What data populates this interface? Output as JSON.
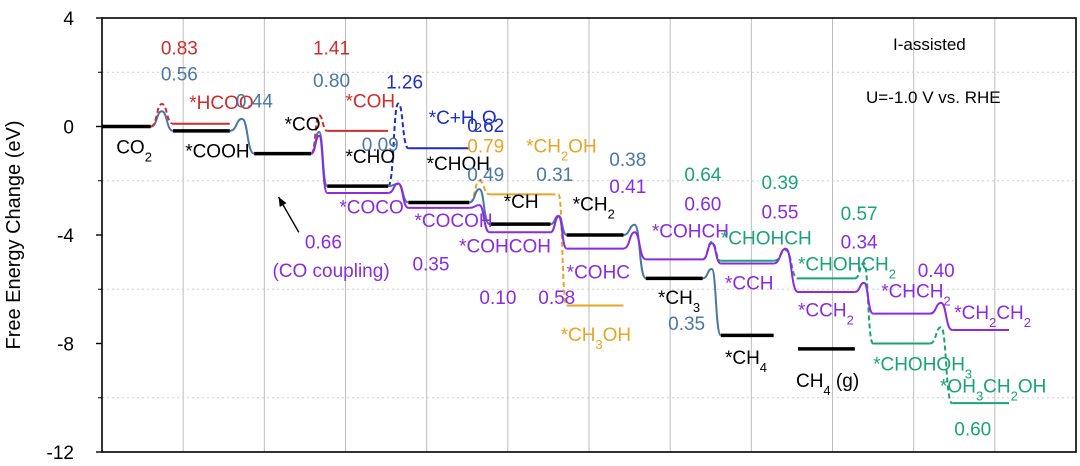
{
  "chart_data": {
    "type": "line",
    "ylabel": "Free Energy Change (eV)",
    "yticks": [
      "4",
      "0",
      "-4",
      "-8",
      "-12"
    ],
    "ylim": [
      -12,
      4
    ],
    "xlim": [
      0,
      12
    ],
    "vgrid": true,
    "notes": [
      {
        "text": "I-assisted",
        "color": "#000000",
        "position": "top-right"
      },
      {
        "text": "U=-1.0 V vs. RHE",
        "color": "#000000",
        "position": "top-right"
      }
    ],
    "colors": {
      "black": "#000000",
      "red": "#d12b2b",
      "steel": "#4a77a8",
      "blue": "#1c2fc4",
      "orange": "#e8a524",
      "purple": "#8a2be2",
      "green": "#1aa37a"
    },
    "levels": [
      {
        "label": "CO2",
        "html": "CO<tspan baseline-shift='sub' font-size='13'>2</tspan>",
        "color": "#000000",
        "x0": 0.0,
        "x1": 1.2,
        "y": 0.0,
        "lx": 0.35,
        "ly": -1.0
      },
      {
        "label": "*COOH",
        "html": "*COOH",
        "color": "#000000",
        "x0": 1.75,
        "x1": 3.15,
        "y": -0.16,
        "lx": 2.05,
        "ly": -1.15
      },
      {
        "label": "*HCOO",
        "html": "*HCOO",
        "color": "#d12b2b",
        "x0": 1.75,
        "x1": 3.15,
        "y": 0.1,
        "lx": 2.15,
        "ly": 0.65
      },
      {
        "label": "*CO",
        "html": "*CO",
        "color": "#000000",
        "x0": 3.75,
        "x1": 5.15,
        "y": -1.0,
        "lx": 4.5,
        "ly": -0.15
      },
      {
        "label": "*COH",
        "html": "*COH",
        "color": "#d12b2b",
        "x0": 5.55,
        "x1": 7.05,
        "y": -0.16,
        "lx": 6.0,
        "ly": 0.7
      },
      {
        "label": "*CHO",
        "html": "*CHO",
        "color": "#000000",
        "x0": 5.55,
        "x1": 7.05,
        "y": -2.2,
        "lx": 6.0,
        "ly": -1.35
      },
      {
        "label": "*COCO",
        "html": "*COCO",
        "color": "#8a2be2",
        "x0": 5.55,
        "x1": 7.05,
        "y": -2.45,
        "lx": 5.85,
        "ly": -3.2
      },
      {
        "label": "*C+H2O",
        "html": "*C+H<tspan baseline-shift='sub' font-size='13'>2</tspan>O",
        "color": "#1c2fc4",
        "x0": 7.55,
        "x1": 9.05,
        "y": -0.8,
        "lx": 8.05,
        "ly": 0.1
      },
      {
        "label": "*CHOH",
        "html": "*CHOH",
        "color": "#000000",
        "x0": 7.55,
        "x1": 9.05,
        "y": -2.8,
        "lx": 8.0,
        "ly": -1.6
      },
      {
        "label": "*COCOH",
        "html": "*COCOH",
        "color": "#8a2be2",
        "x0": 7.55,
        "x1": 9.05,
        "y": -3.0,
        "lx": 7.7,
        "ly": -3.7
      },
      {
        "label": "*CH2OH",
        "html": "*CH<tspan baseline-shift='sub' font-size='13'>2</tspan>OH",
        "color": "#e8a524",
        "x0": 9.55,
        "x1": 11.05,
        "y": -2.5,
        "lx": 10.45,
        "ly": -0.95
      },
      {
        "label": "*CH",
        "html": "*CH",
        "color": "#000000",
        "x0": 9.55,
        "x1": 11.05,
        "y": -3.6,
        "lx": 9.9,
        "ly": -3.0
      },
      {
        "label": "*COHCOH",
        "html": "*COHCOH",
        "color": "#8a2be2",
        "x0": 9.55,
        "x1": 11.05,
        "y": -3.9,
        "lx": 8.8,
        "ly": -4.65
      },
      {
        "label": "*CH3OH",
        "html": "*CH<tspan baseline-shift='sub' font-size='13'>3</tspan>OH",
        "color": "#e8a524",
        "x0": 11.45,
        "x1": 12.85,
        "y": -6.6,
        "lx": 11.3,
        "ly": -7.9
      },
      {
        "label": "*CH2",
        "html": "*CH<tspan baseline-shift='sub' font-size='13'>2</tspan>",
        "color": "#000000",
        "x0": 11.45,
        "x1": 12.85,
        "y": -4.0,
        "lx": 11.6,
        "ly": -3.1
      },
      {
        "label": "*COHC",
        "html": "*COHC",
        "color": "#8a2be2",
        "x0": 11.45,
        "x1": 12.85,
        "y": -4.5,
        "lx": 11.45,
        "ly": -5.6
      },
      {
        "label": "*COHCH",
        "html": "*COHCH",
        "color": "#8a2be2",
        "x0": 13.4,
        "x1": 14.8,
        "y": -4.9,
        "lx": 13.55,
        "ly": -4.1
      },
      {
        "label": "*CH3",
        "html": "*CH<tspan baseline-shift='sub' font-size='13'>3</tspan>",
        "color": "#000000",
        "x0": 13.4,
        "x1": 14.8,
        "y": -5.6,
        "lx": 13.7,
        "ly": -6.55
      },
      {
        "label": "*CHOHCH",
        "html": "*CHOHCH",
        "color": "#1aa37a",
        "x0": 15.25,
        "x1": 16.55,
        "y": -4.95,
        "lx": 15.25,
        "ly": -4.35
      },
      {
        "label": "*CCH",
        "html": "*CCH",
        "color": "#8a2be2",
        "x0": 15.25,
        "x1": 16.55,
        "y": -5.05,
        "lx": 15.35,
        "ly": -6.0
      },
      {
        "label": "*CH4",
        "html": "*CH<tspan baseline-shift='sub' font-size='13'>4</tspan>",
        "color": "#000000",
        "x0": 15.25,
        "x1": 16.55,
        "y": -7.7,
        "lx": 15.35,
        "ly": -8.75
      },
      {
        "label": "CH4 (g)",
        "html": "CH<tspan baseline-shift='sub' font-size='13'>4</tspan> (g)",
        "color": "#000000",
        "x0": 17.15,
        "x1": 18.55,
        "y": -8.2,
        "lx": 17.1,
        "ly": -9.6
      },
      {
        "label": "*CHOHCH2",
        "html": "*CHOHCH<tspan baseline-shift='sub' font-size='13'>2</tspan>",
        "color": "#1aa37a",
        "x0": 17.15,
        "x1": 18.55,
        "y": -5.6,
        "lx": 17.15,
        "ly": -5.3
      },
      {
        "label": "*CCH2",
        "html": "*CCH<tspan baseline-shift='sub' font-size='13'>2</tspan>",
        "color": "#8a2be2",
        "x0": 17.15,
        "x1": 18.55,
        "y": -6.1,
        "lx": 17.15,
        "ly": -7.0
      },
      {
        "label": "*CHCH2",
        "html": "*CHCH<tspan baseline-shift='sub' font-size='13'>2</tspan>",
        "color": "#8a2be2",
        "x0": 19.0,
        "x1": 20.4,
        "y": -6.9,
        "lx": 19.2,
        "ly": -6.3
      },
      {
        "label": "*CHOHOH3",
        "html": "*CHOHOH<tspan baseline-shift='sub' font-size='13'>3</tspan>",
        "color": "#1aa37a",
        "x0": 19.0,
        "x1": 20.4,
        "y": -8.0,
        "lx": 19.0,
        "ly": -9.0
      },
      {
        "label": "*CH2CH2",
        "html": "*CH<tspan baseline-shift='sub' font-size='13'>2</tspan>CH<tspan baseline-shift='sub' font-size='13'>2</tspan>",
        "color": "#8a2be2",
        "x0": 20.95,
        "x1": 22.35,
        "y": -7.5,
        "lx": 21.0,
        "ly": -7.1
      },
      {
        "label": "*OH3CH2OH",
        "html": "*OH<tspan baseline-shift='sub' font-size='13'>3</tspan>CH<tspan baseline-shift='sub' font-size='13'>2</tspan>OH",
        "color": "#1aa37a",
        "x0": 20.95,
        "x1": 22.35,
        "y": -10.2,
        "lx": 20.65,
        "ly": -9.8
      }
    ],
    "barriers": [
      {
        "value": "0.83",
        "color": "#d12b2b",
        "lx": 1.45,
        "ly": 2.65
      },
      {
        "value": "0.56",
        "color": "#4a77a8",
        "lx": 1.45,
        "ly": 1.7
      },
      {
        "value": "0.44",
        "color": "#4a77a8",
        "lx": 3.3,
        "ly": 0.7
      },
      {
        "value": "1.41",
        "color": "#d12b2b",
        "lx": 5.2,
        "ly": 2.65
      },
      {
        "value": "0.80",
        "color": "#4a77a8",
        "lx": 5.2,
        "ly": 1.45
      },
      {
        "value": "1.26",
        "color": "#1c2fc4",
        "lx": 7.0,
        "ly": 1.4
      },
      {
        "value": "0.09",
        "color": "#4a77a8",
        "lx": 6.4,
        "ly": -0.9
      },
      {
        "value": "0.62",
        "color": "#1c2fc4",
        "lx": 9.0,
        "ly": -0.2
      },
      {
        "value": "0.79",
        "color": "#e8a524",
        "lx": 9.0,
        "ly": -0.95
      },
      {
        "value": "0.49",
        "color": "#4a77a8",
        "lx": 9.0,
        "ly": -2.0
      },
      {
        "value": "0.31",
        "color": "#4a77a8",
        "lx": 10.7,
        "ly": -2.0
      },
      {
        "value": "0.38",
        "color": "#4a77a8",
        "lx": 12.5,
        "ly": -1.45
      },
      {
        "value": "0.41",
        "color": "#8a2be2",
        "lx": 12.5,
        "ly": -2.45
      },
      {
        "value": "0.64",
        "color": "#1aa37a",
        "lx": 14.35,
        "ly": -2.0
      },
      {
        "value": "0.60",
        "color": "#8a2be2",
        "lx": 14.35,
        "ly": -3.1
      },
      {
        "value": "0.39",
        "color": "#1aa37a",
        "lx": 16.25,
        "ly": -2.3
      },
      {
        "value": "0.55",
        "color": "#8a2be2",
        "lx": 16.25,
        "ly": -3.4
      },
      {
        "value": "0.57",
        "color": "#1aa37a",
        "lx": 18.2,
        "ly": -3.45
      },
      {
        "value": "0.34",
        "color": "#8a2be2",
        "lx": 18.2,
        "ly": -4.5
      },
      {
        "value": "0.40",
        "color": "#8a2be2",
        "lx": 20.1,
        "ly": -5.55
      },
      {
        "value": "0.66",
        "color": "#8a2be2",
        "lx": 5.0,
        "ly": -4.5
      },
      {
        "value": "(CO coupling)",
        "color": "#8a2be2",
        "lx": 4.2,
        "ly": -5.55
      },
      {
        "value": "0.35",
        "color": "#8a2be2",
        "lx": 7.65,
        "ly": -5.3
      },
      {
        "value": "0.10",
        "color": "#8a2be2",
        "lx": 9.3,
        "ly": -6.55
      },
      {
        "value": "0.58",
        "color": "#8a2be2",
        "lx": 10.75,
        "ly": -6.55
      },
      {
        "value": "0.35",
        "color": "#4a77a8",
        "lx": 13.95,
        "ly": -7.5
      },
      {
        "value": "0.60",
        "color": "#1aa37a",
        "lx": 21.0,
        "ly": -11.4
      }
    ],
    "transitions": [
      {
        "from": [
          1.2,
          0.0
        ],
        "to": [
          1.75,
          -0.16
        ],
        "peak": 0.56,
        "color": "#4a77a8",
        "dash": false
      },
      {
        "from": [
          1.2,
          0.0
        ],
        "to": [
          1.75,
          0.1
        ],
        "peak": 0.83,
        "color": "#d12b2b",
        "dash": true
      },
      {
        "from": [
          3.15,
          -0.16
        ],
        "to": [
          3.75,
          -1.0
        ],
        "peak": 0.28,
        "color": "#4a77a8",
        "dash": false
      },
      {
        "from": [
          5.15,
          -1.0
        ],
        "to": [
          5.55,
          -0.16
        ],
        "peak": 0.41,
        "color": "#d12b2b",
        "dash": true
      },
      {
        "from": [
          5.15,
          -1.0
        ],
        "to": [
          5.55,
          -2.2
        ],
        "peak": -0.2,
        "color": "#4a77a8",
        "dash": false
      },
      {
        "from": [
          5.15,
          -1.0
        ],
        "to": [
          5.55,
          -2.45
        ],
        "peak": -0.34,
        "color": "#8a2be2",
        "dash": false
      },
      {
        "from": [
          7.05,
          -2.2
        ],
        "to": [
          7.55,
          -0.8
        ],
        "peak": 0.85,
        "color": "#1c2fc4",
        "dash": true
      },
      {
        "from": [
          7.05,
          -2.2
        ],
        "to": [
          7.55,
          -2.8
        ],
        "peak": -2.11,
        "color": "#4a77a8",
        "dash": false
      },
      {
        "from": [
          7.05,
          -2.45
        ],
        "to": [
          7.55,
          -3.0
        ],
        "peak": -2.1,
        "color": "#8a2be2",
        "dash": false
      },
      {
        "from": [
          9.05,
          -2.8
        ],
        "to": [
          9.55,
          -2.5
        ],
        "peak": -2.01,
        "color": "#e8a524",
        "dash": true
      },
      {
        "from": [
          9.05,
          -2.8
        ],
        "to": [
          9.55,
          -3.6
        ],
        "peak": -2.31,
        "color": "#4a77a8",
        "dash": false
      },
      {
        "from": [
          9.05,
          -3.0
        ],
        "to": [
          9.55,
          -3.9
        ],
        "peak": -2.9,
        "color": "#8a2be2",
        "dash": false
      },
      {
        "from": [
          11.05,
          -2.5
        ],
        "to": [
          11.45,
          -6.6
        ],
        "peak": -2.5,
        "color": "#e8a524",
        "dash": true
      },
      {
        "from": [
          11.05,
          -3.6
        ],
        "to": [
          11.45,
          -4.0
        ],
        "peak": -3.29,
        "color": "#4a77a8",
        "dash": false
      },
      {
        "from": [
          11.05,
          -3.9
        ],
        "to": [
          11.45,
          -4.5
        ],
        "peak": -3.32,
        "color": "#8a2be2",
        "dash": false
      },
      {
        "from": [
          12.85,
          -4.0
        ],
        "to": [
          13.4,
          -5.6
        ],
        "peak": -3.62,
        "color": "#4a77a8",
        "dash": false
      },
      {
        "from": [
          12.85,
          -4.5
        ],
        "to": [
          13.4,
          -4.9
        ],
        "peak": -3.9,
        "color": "#8a2be2",
        "dash": false
      },
      {
        "from": [
          14.8,
          -5.6
        ],
        "to": [
          15.25,
          -7.7
        ],
        "peak": -5.25,
        "color": "#4a77a8",
        "dash": false
      },
      {
        "from": [
          14.8,
          -4.9
        ],
        "to": [
          15.25,
          -4.95
        ],
        "peak": -4.26,
        "color": "#1aa37a",
        "dash": true
      },
      {
        "from": [
          14.8,
          -4.9
        ],
        "to": [
          15.25,
          -5.05
        ],
        "peak": -4.3,
        "color": "#8a2be2",
        "dash": false
      },
      {
        "from": [
          16.55,
          -4.95
        ],
        "to": [
          17.15,
          -5.6
        ],
        "peak": -4.56,
        "color": "#1aa37a",
        "dash": true
      },
      {
        "from": [
          16.55,
          -5.05
        ],
        "to": [
          17.15,
          -6.1
        ],
        "peak": -4.5,
        "color": "#8a2be2",
        "dash": false
      },
      {
        "from": [
          18.55,
          -5.6
        ],
        "to": [
          19.0,
          -8.0
        ],
        "peak": -5.03,
        "color": "#1aa37a",
        "dash": true
      },
      {
        "from": [
          18.55,
          -6.1
        ],
        "to": [
          19.0,
          -6.9
        ],
        "peak": -5.76,
        "color": "#8a2be2",
        "dash": false
      },
      {
        "from": [
          20.4,
          -6.9
        ],
        "to": [
          20.95,
          -7.5
        ],
        "peak": -6.5,
        "color": "#8a2be2",
        "dash": false
      },
      {
        "from": [
          20.4,
          -8.0
        ],
        "to": [
          20.95,
          -10.2
        ],
        "peak": -7.4,
        "color": "#1aa37a",
        "dash": true
      }
    ],
    "arrow": {
      "from": [
        4.85,
        -3.9
      ],
      "to": [
        4.35,
        -2.6
      ]
    }
  }
}
